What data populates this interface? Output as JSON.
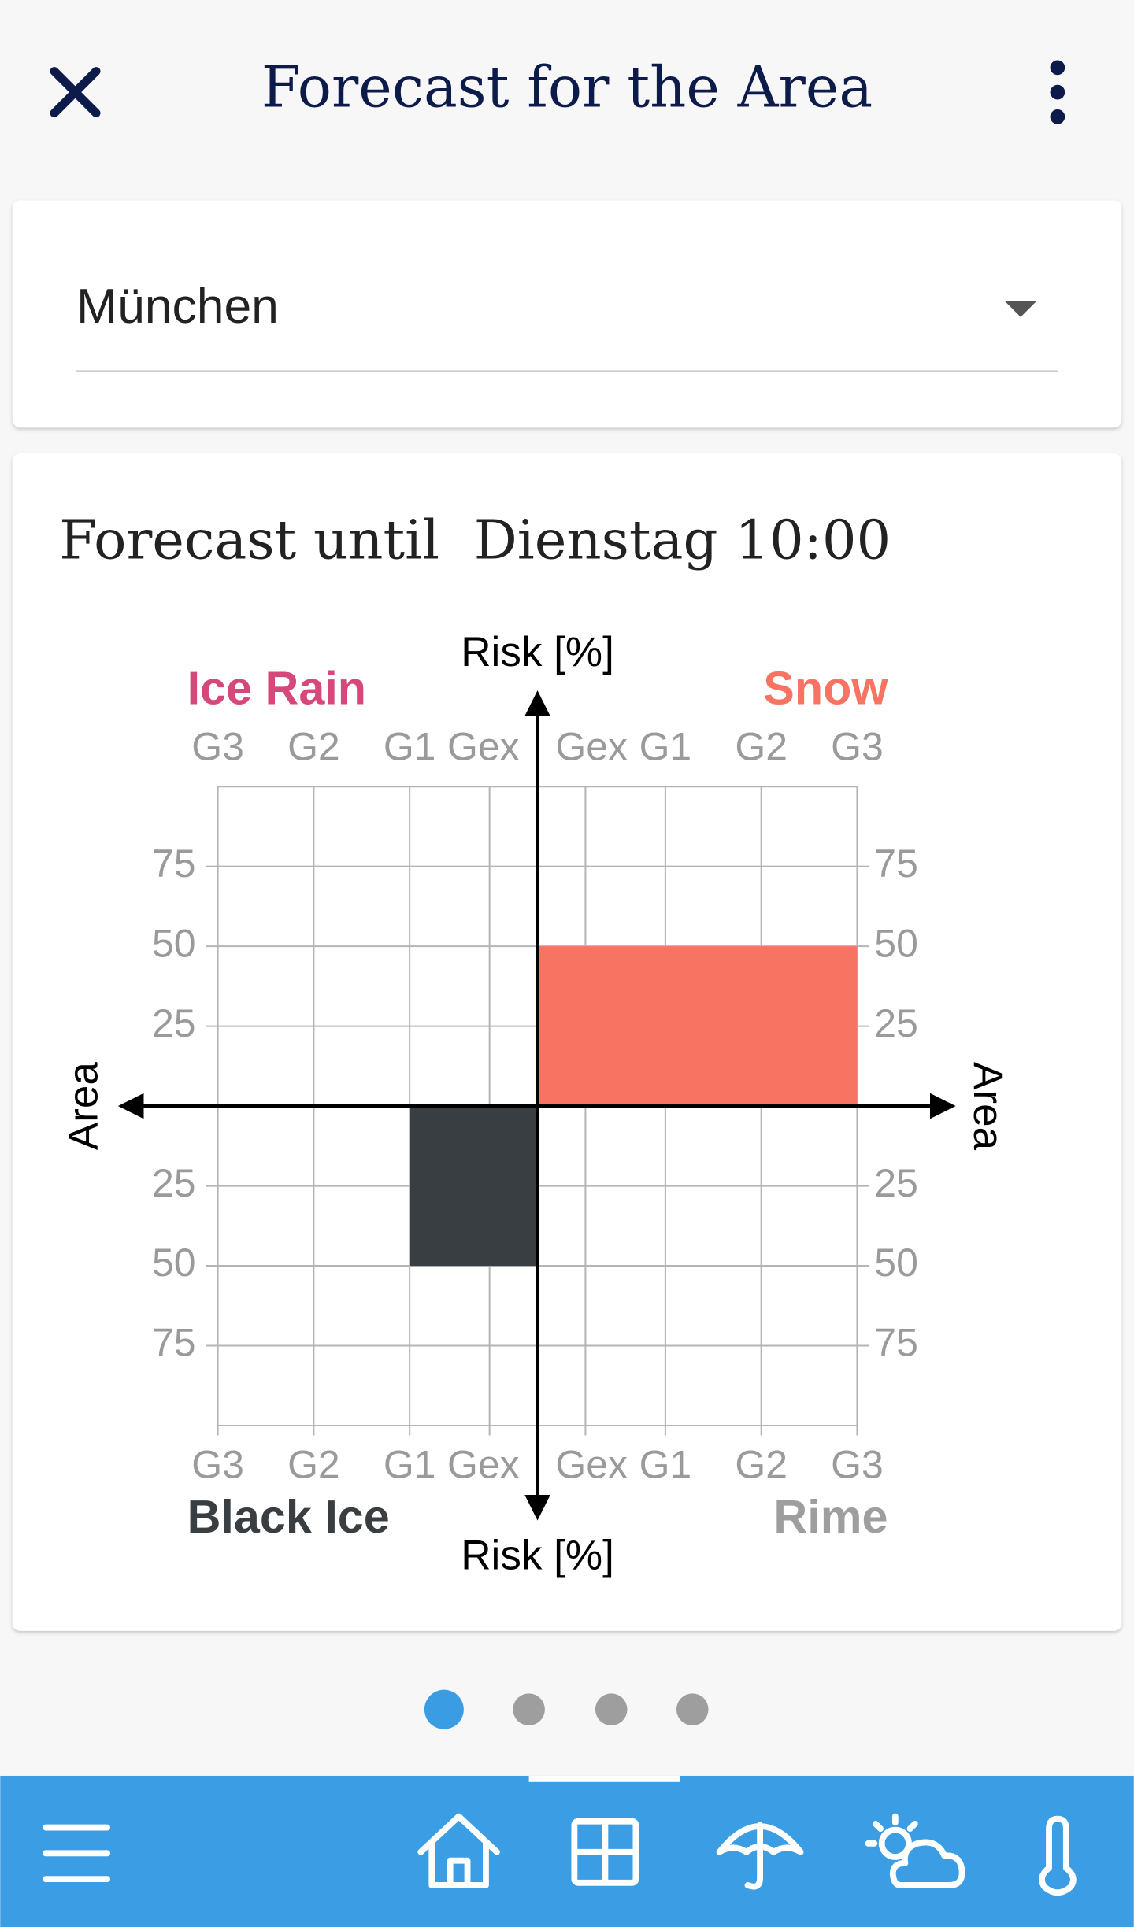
{
  "header": {
    "title": "Forecast for the Area"
  },
  "dropdown": {
    "value": "München"
  },
  "card": {
    "title": "Forecast until  Dienstag 10:00"
  },
  "chart_data": {
    "type": "quadrant",
    "y_label": "Risk [%]",
    "x_label": "Area",
    "categories": [
      "Gex",
      "G1",
      "G2",
      "G3"
    ],
    "ylim": [
      0,
      100
    ],
    "yticks": [
      25,
      50,
      75
    ],
    "series": [
      {
        "name": "Ice Rain",
        "color": "#d6487c",
        "quadrant": "top-left",
        "area": null,
        "risk": null
      },
      {
        "name": "Snow",
        "color": "#f87462",
        "quadrant": "top-right",
        "area": "G3",
        "risk": 50
      },
      {
        "name": "Black Ice",
        "color": "#383e42",
        "quadrant": "bottom-left",
        "area": "G1",
        "risk": 50
      },
      {
        "name": "Rime",
        "color": "#9e9e9e",
        "quadrant": "bottom-right",
        "area": null,
        "risk": null
      }
    ]
  }
}
